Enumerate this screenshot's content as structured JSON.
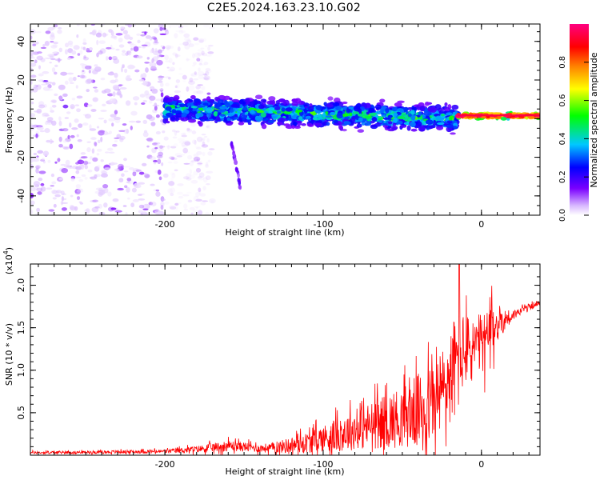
{
  "title": "C2E5.2024.163.23.10.G02",
  "chart_data": [
    {
      "type": "heatmap",
      "xlabel": "Height of straight line (km)",
      "ylabel": "Frequency (Hz)",
      "xlim": [
        -285,
        37
      ],
      "ylim": [
        -50,
        49
      ],
      "x_ticks": [
        -200,
        -100,
        0
      ],
      "y_ticks": [
        40,
        20,
        0,
        -20,
        -40
      ],
      "colorbar": {
        "label": "Normalized spectral amplitude",
        "range": [
          0,
          1
        ],
        "ticks": [
          "0.0",
          "0.2",
          "0.4",
          "0.6",
          "0.8"
        ],
        "colors": [
          "#ffffff",
          "#d8b8ff",
          "#7a00ff",
          "#0000ff",
          "#00c8ff",
          "#00ff00",
          "#ffff00",
          "#ff8000",
          "#ff0000",
          "#ff0080"
        ]
      },
      "features": [
        {
          "name": "broadband noise",
          "x_range": [
            -285,
            -200
          ],
          "y_range": [
            -50,
            49
          ],
          "amplitude": 0.15
        },
        {
          "name": "main band",
          "x_range": [
            -200,
            -15
          ],
          "center_hz": 5,
          "to_center_hz": 0,
          "half_width_hz": 9,
          "amplitude": 0.35
        },
        {
          "name": "tonal line",
          "x_range": [
            -15,
            37
          ],
          "center_hz": 1.5,
          "half_width_hz": 2,
          "amplitude": 0.95
        },
        {
          "name": "streak",
          "x_range": [
            -158,
            -152
          ],
          "y_range": [
            -37,
            -12
          ],
          "amplitude": 0.25
        }
      ]
    },
    {
      "type": "line",
      "xlabel": "Height of straight line (km)",
      "ylabel": "SNR (10 * v/v)",
      "y_multiplier": "(x10^4)",
      "xlim": [
        -285,
        37
      ],
      "ylim": [
        0,
        2.25
      ],
      "x_ticks": [
        -200,
        -100,
        0
      ],
      "y_ticks": [
        "0.5",
        "1.0",
        "1.5",
        "2.0"
      ],
      "series": [
        {
          "color": "#ff0000",
          "x": [
            -285,
            -250,
            -200,
            -180,
            -160,
            -150,
            -140,
            -130,
            -120,
            -110,
            -100,
            -90,
            -80,
            -70,
            -60,
            -50,
            -40,
            -30,
            -25,
            -20,
            -15,
            -12,
            -8,
            0,
            5,
            10,
            15,
            20,
            25,
            30,
            37
          ],
          "values": [
            0.03,
            0.035,
            0.045,
            0.07,
            0.11,
            0.1,
            0.08,
            0.09,
            0.12,
            0.15,
            0.2,
            0.24,
            0.3,
            0.35,
            0.4,
            0.45,
            0.52,
            0.62,
            0.75,
            0.9,
            1.1,
            1.2,
            1.25,
            1.3,
            1.4,
            1.55,
            1.6,
            1.65,
            1.7,
            1.75,
            1.78
          ],
          "noise_envelope": [
            0.02,
            0.02,
            0.03,
            0.05,
            0.08,
            0.07,
            0.06,
            0.08,
            0.12,
            0.15,
            0.2,
            0.25,
            0.3,
            0.35,
            0.4,
            0.45,
            0.55,
            0.6,
            0.65,
            0.7,
            0.8,
            0.6,
            0.5,
            0.45,
            0.45,
            0.3,
            0.15,
            0.08,
            0.05,
            0.04,
            0.03
          ],
          "peak": {
            "x": -14,
            "value": 2.25
          }
        }
      ]
    }
  ]
}
